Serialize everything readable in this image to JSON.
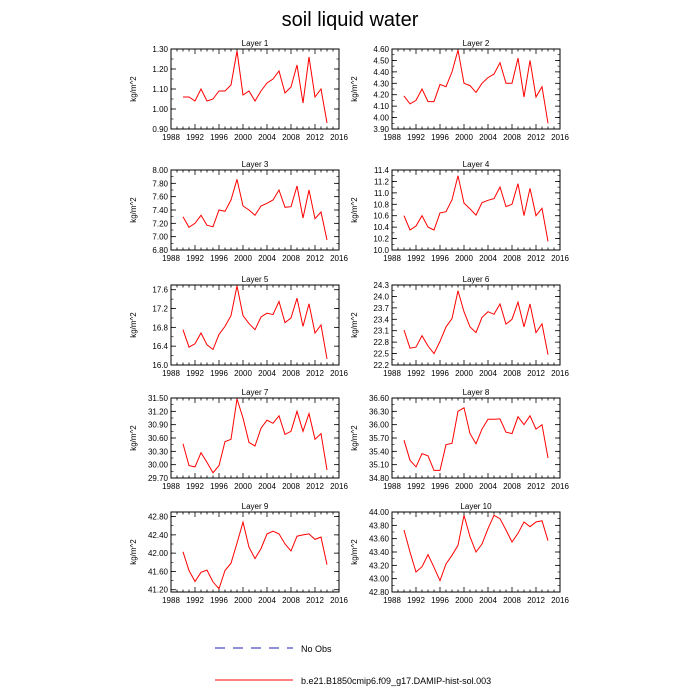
{
  "page": {
    "title": "soil liquid water"
  },
  "colors": {
    "series": "#ff0000",
    "axis": "#000000",
    "background": "#ffffff"
  },
  "legend": {
    "items": [
      {
        "label": "No Obs",
        "style": "dashed",
        "color": "#2222aa"
      },
      {
        "label": "b.e21.B1850cmip6.f09_g17.DAMIP-hist-sol.003",
        "style": "solid",
        "color": "#ff0000"
      }
    ]
  },
  "chart_data": [
    {
      "type": "line",
      "title": "Layer 1",
      "ylabel": "kg/m^2",
      "x": [
        1990,
        1991,
        1992,
        1993,
        1994,
        1995,
        1996,
        1997,
        1998,
        1999,
        2000,
        2001,
        2002,
        2003,
        2004,
        2005,
        2006,
        2007,
        2008,
        2009,
        2010,
        2011,
        2012,
        2013,
        2014
      ],
      "xlim": [
        1988,
        2016
      ],
      "xticks": [
        "1988",
        "1992",
        "1996",
        "2000",
        "2004",
        "2008",
        "2012",
        "2016"
      ],
      "ylim": [
        0.9,
        1.3
      ],
      "yticks": [
        "0.90",
        "1.00",
        "1.10",
        "1.20",
        "1.30"
      ],
      "series": [
        {
          "values": [
            1.06,
            1.06,
            1.04,
            1.1,
            1.04,
            1.05,
            1.09,
            1.09,
            1.12,
            1.29,
            1.07,
            1.09,
            1.04,
            1.09,
            1.13,
            1.15,
            1.19,
            1.08,
            1.11,
            1.22,
            1.03,
            1.26,
            1.06,
            1.1,
            0.93
          ]
        }
      ]
    },
    {
      "type": "line",
      "title": "Layer 2",
      "ylabel": "kg/m^2",
      "x": [
        1990,
        1991,
        1992,
        1993,
        1994,
        1995,
        1996,
        1997,
        1998,
        1999,
        2000,
        2001,
        2002,
        2003,
        2004,
        2005,
        2006,
        2007,
        2008,
        2009,
        2010,
        2011,
        2012,
        2013,
        2014
      ],
      "xlim": [
        1988,
        2016
      ],
      "xticks": [
        "1988",
        "1992",
        "1996",
        "2000",
        "2004",
        "2008",
        "2012",
        "2016"
      ],
      "ylim": [
        3.9,
        4.6
      ],
      "yticks": [
        "3.90",
        "4.00",
        "4.10",
        "4.20",
        "4.30",
        "4.40",
        "4.50",
        "4.60"
      ],
      "series": [
        {
          "values": [
            4.19,
            4.12,
            4.15,
            4.25,
            4.14,
            4.14,
            4.29,
            4.27,
            4.4,
            4.59,
            4.3,
            4.28,
            4.22,
            4.3,
            4.35,
            4.38,
            4.48,
            4.3,
            4.3,
            4.52,
            4.18,
            4.5,
            4.18,
            4.27,
            3.95
          ]
        }
      ]
    },
    {
      "type": "line",
      "title": "Layer 3",
      "ylabel": "kg/m^2",
      "x": [
        1990,
        1991,
        1992,
        1993,
        1994,
        1995,
        1996,
        1997,
        1998,
        1999,
        2000,
        2001,
        2002,
        2003,
        2004,
        2005,
        2006,
        2007,
        2008,
        2009,
        2010,
        2011,
        2012,
        2013,
        2014
      ],
      "xlim": [
        1988,
        2016
      ],
      "xticks": [
        "1988",
        "1992",
        "1996",
        "2000",
        "2004",
        "2008",
        "2012",
        "2016"
      ],
      "ylim": [
        6.8,
        8.0
      ],
      "yticks": [
        "6.80",
        "7.00",
        "7.20",
        "7.40",
        "7.60",
        "7.80",
        "8.00"
      ],
      "series": [
        {
          "values": [
            7.3,
            7.14,
            7.2,
            7.32,
            7.17,
            7.15,
            7.4,
            7.38,
            7.55,
            7.86,
            7.46,
            7.4,
            7.32,
            7.46,
            7.5,
            7.55,
            7.7,
            7.44,
            7.45,
            7.76,
            7.28,
            7.7,
            7.27,
            7.37,
            6.95
          ]
        }
      ]
    },
    {
      "type": "line",
      "title": "Layer 4",
      "ylabel": "kg/m^2",
      "x": [
        1990,
        1991,
        1992,
        1993,
        1994,
        1995,
        1996,
        1997,
        1998,
        1999,
        2000,
        2001,
        2002,
        2003,
        2004,
        2005,
        2006,
        2007,
        2008,
        2009,
        2010,
        2011,
        2012,
        2013,
        2014
      ],
      "xlim": [
        1988,
        2016
      ],
      "xticks": [
        "1988",
        "1992",
        "1996",
        "2000",
        "2004",
        "2008",
        "2012",
        "2016"
      ],
      "ylim": [
        10.0,
        11.4
      ],
      "yticks": [
        "10.0",
        "10.2",
        "10.4",
        "10.6",
        "10.8",
        "11.0",
        "11.2",
        "11.4"
      ],
      "series": [
        {
          "values": [
            10.6,
            10.35,
            10.42,
            10.6,
            10.4,
            10.35,
            10.65,
            10.67,
            10.88,
            11.3,
            10.82,
            10.72,
            10.61,
            10.83,
            10.87,
            10.9,
            11.1,
            10.76,
            10.8,
            11.16,
            10.6,
            11.08,
            10.6,
            10.73,
            10.15
          ]
        }
      ]
    },
    {
      "type": "line",
      "title": "Layer 5",
      "ylabel": "kg/m^2",
      "x": [
        1990,
        1991,
        1992,
        1993,
        1994,
        1995,
        1996,
        1997,
        1998,
        1999,
        2000,
        2001,
        2002,
        2003,
        2004,
        2005,
        2006,
        2007,
        2008,
        2009,
        2010,
        2011,
        2012,
        2013,
        2014
      ],
      "xlim": [
        1988,
        2016
      ],
      "xticks": [
        "1988",
        "1992",
        "1996",
        "2000",
        "2004",
        "2008",
        "2012",
        "2016"
      ],
      "ylim": [
        16.0,
        17.7
      ],
      "yticks": [
        "16.0",
        "16.4",
        "16.8",
        "17.2",
        "17.6"
      ],
      "series": [
        {
          "values": [
            16.75,
            16.38,
            16.45,
            16.68,
            16.43,
            16.33,
            16.65,
            16.82,
            17.05,
            17.68,
            17.05,
            16.88,
            16.75,
            17.02,
            17.1,
            17.07,
            17.35,
            16.9,
            17.0,
            17.42,
            16.82,
            17.3,
            16.68,
            16.85,
            16.13
          ]
        }
      ]
    },
    {
      "type": "line",
      "title": "Layer 6",
      "ylabel": "kg/m^2",
      "x": [
        1990,
        1991,
        1992,
        1993,
        1994,
        1995,
        1996,
        1997,
        1998,
        1999,
        2000,
        2001,
        2002,
        2003,
        2004,
        2005,
        2006,
        2007,
        2008,
        2009,
        2010,
        2011,
        2012,
        2013,
        2014
      ],
      "xlim": [
        1988,
        2016
      ],
      "xticks": [
        "1988",
        "1992",
        "1996",
        "2000",
        "2004",
        "2008",
        "2012",
        "2016"
      ],
      "ylim": [
        22.2,
        24.3
      ],
      "yticks": [
        "22.2",
        "22.5",
        "22.8",
        "23.1",
        "23.4",
        "23.7",
        "24.0",
        "24.3"
      ],
      "series": [
        {
          "values": [
            23.12,
            22.64,
            22.67,
            22.97,
            22.7,
            22.5,
            22.82,
            23.2,
            23.42,
            24.15,
            23.6,
            23.2,
            23.05,
            23.45,
            23.6,
            23.53,
            23.8,
            23.27,
            23.4,
            23.85,
            23.2,
            23.8,
            23.05,
            23.28,
            22.47
          ]
        }
      ]
    },
    {
      "type": "line",
      "title": "Layer 7",
      "ylabel": "kg/m^2",
      "x": [
        1990,
        1991,
        1992,
        1993,
        1994,
        1995,
        1996,
        1997,
        1998,
        1999,
        2000,
        2001,
        2002,
        2003,
        2004,
        2005,
        2006,
        2007,
        2008,
        2009,
        2010,
        2011,
        2012,
        2013,
        2014
      ],
      "xlim": [
        1988,
        2016
      ],
      "xticks": [
        "1988",
        "1992",
        "1996",
        "2000",
        "2004",
        "2008",
        "2012",
        "2016"
      ],
      "ylim": [
        29.7,
        31.5
      ],
      "yticks": [
        "29.70",
        "30.00",
        "30.30",
        "30.60",
        "30.90",
        "31.20",
        "31.50"
      ],
      "series": [
        {
          "values": [
            30.47,
            29.98,
            29.95,
            30.27,
            30.05,
            29.82,
            29.98,
            30.52,
            30.57,
            31.48,
            31.05,
            30.5,
            30.42,
            30.82,
            31.0,
            30.93,
            31.1,
            30.68,
            30.75,
            31.2,
            30.75,
            31.15,
            30.57,
            30.7,
            29.88
          ]
        }
      ]
    },
    {
      "type": "line",
      "title": "Layer 8",
      "ylabel": "kg/m^2",
      "x": [
        1990,
        1991,
        1992,
        1993,
        1994,
        1995,
        1996,
        1997,
        1998,
        1999,
        2000,
        2001,
        2002,
        2003,
        2004,
        2005,
        2006,
        2007,
        2008,
        2009,
        2010,
        2011,
        2012,
        2013,
        2014
      ],
      "xlim": [
        1988,
        2016
      ],
      "xticks": [
        "1988",
        "1992",
        "1996",
        "2000",
        "2004",
        "2008",
        "2012",
        "2016"
      ],
      "ylim": [
        34.8,
        36.6
      ],
      "yticks": [
        "34.80",
        "35.10",
        "35.40",
        "35.70",
        "36.00",
        "36.30",
        "36.60"
      ],
      "series": [
        {
          "values": [
            35.65,
            35.2,
            35.05,
            35.35,
            35.3,
            34.97,
            34.97,
            35.55,
            35.58,
            36.3,
            36.38,
            35.8,
            35.57,
            35.9,
            36.12,
            36.12,
            36.13,
            35.83,
            35.8,
            36.18,
            36.0,
            36.2,
            35.9,
            36.0,
            35.25
          ]
        }
      ]
    },
    {
      "type": "line",
      "title": "Layer 9",
      "ylabel": "kg/m^2",
      "x": [
        1990,
        1991,
        1992,
        1993,
        1994,
        1995,
        1996,
        1997,
        1998,
        1999,
        2000,
        2001,
        2002,
        2003,
        2004,
        2005,
        2006,
        2007,
        2008,
        2009,
        2010,
        2011,
        2012,
        2013,
        2014
      ],
      "xlim": [
        1988,
        2016
      ],
      "xticks": [
        "1988",
        "1992",
        "1996",
        "2000",
        "2004",
        "2008",
        "2012",
        "2016"
      ],
      "ylim": [
        41.15,
        42.9
      ],
      "yticks": [
        "41.20",
        "41.60",
        "42.00",
        "42.40",
        "42.80"
      ],
      "series": [
        {
          "values": [
            42.03,
            41.62,
            41.38,
            41.58,
            41.63,
            41.37,
            41.22,
            41.62,
            41.78,
            42.22,
            42.68,
            42.13,
            41.88,
            42.1,
            42.42,
            42.48,
            42.42,
            42.2,
            42.05,
            42.37,
            42.4,
            42.42,
            42.3,
            42.35,
            41.75
          ]
        }
      ]
    },
    {
      "type": "line",
      "title": "Layer 10",
      "ylabel": "kg/m^2",
      "x": [
        1990,
        1991,
        1992,
        1993,
        1994,
        1995,
        1996,
        1997,
        1998,
        1999,
        2000,
        2001,
        2002,
        2003,
        2004,
        2005,
        2006,
        2007,
        2008,
        2009,
        2010,
        2011,
        2012,
        2013,
        2014
      ],
      "xlim": [
        1988,
        2016
      ],
      "xticks": [
        "1988",
        "1992",
        "1996",
        "2000",
        "2004",
        "2008",
        "2012",
        "2016"
      ],
      "ylim": [
        42.8,
        44.0
      ],
      "yticks": [
        "42.80",
        "43.00",
        "43.20",
        "43.40",
        "43.60",
        "43.80",
        "44.00"
      ],
      "series": [
        {
          "values": [
            43.73,
            43.4,
            43.1,
            43.18,
            43.36,
            43.17,
            42.97,
            43.22,
            43.35,
            43.5,
            43.95,
            43.63,
            43.4,
            43.52,
            43.75,
            43.95,
            43.9,
            43.73,
            43.55,
            43.68,
            43.85,
            43.78,
            43.85,
            43.87,
            43.57
          ]
        }
      ]
    }
  ]
}
